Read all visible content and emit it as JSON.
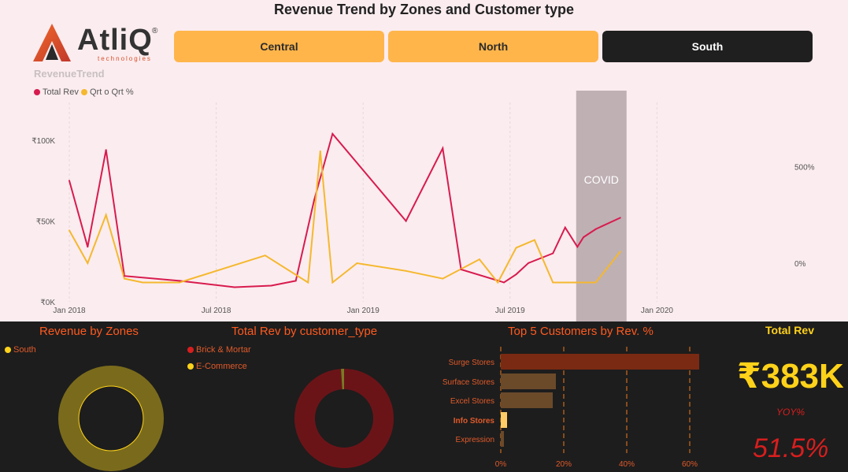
{
  "title": "Revenue Trend by Zones and Customer type",
  "logo": {
    "brand": "AtliQ",
    "registered": "®",
    "tagline": "technologies"
  },
  "zones": [
    {
      "label": "Central",
      "selected": false
    },
    {
      "label": "North",
      "selected": false
    },
    {
      "label": "South",
      "selected": true
    }
  ],
  "section_label": "RevenueTrend",
  "colors": {
    "total_rev": "#d81b4e",
    "qoq": "#f5b82e",
    "covid_band": "#bfb0b4",
    "donut_zone": "#7a6b1c",
    "brick": "#6b1418",
    "ecommerce": "#7a7a24",
    "bar_top": "#7a2a12",
    "bar_mid": "#6b4a2a",
    "bar_info": "#ffcc66",
    "kpi": "#ffd21a",
    "red": "#d81e1e"
  },
  "chart_data": [
    {
      "type": "line",
      "title": "RevenueTrend",
      "categories": [
        "2018-01",
        "2018-02",
        "2018-03",
        "2018-04",
        "2018-05",
        "2018-07",
        "2018-09",
        "2018-11",
        "2018-12",
        "2019-01",
        "2019-03",
        "2019-05",
        "2019-06",
        "2019-08",
        "2019-09",
        "2019-10",
        "2019-11",
        "2019-12",
        "2020-01",
        "2020-02",
        "2020-03",
        "2020-06"
      ],
      "x_ticks": [
        "Jan 2018",
        "Jul 2018",
        "Jan 2019",
        "Jul 2019",
        "Jan 2020"
      ],
      "y_ticks": [
        "₹0K",
        "₹50K",
        "₹100K"
      ],
      "y2_ticks": [
        "0%",
        "500%"
      ],
      "ylim": [
        0,
        105000
      ],
      "y2lim": [
        -200,
        700
      ],
      "legend": [
        "Total Rev",
        "Qrt o Qrt %"
      ],
      "series": [
        {
          "name": "Total Rev",
          "x": [
            0,
            0.75,
            1.5,
            2.25,
            4.5,
            6.75,
            8.25,
            9.25,
            10,
            10.75,
            13.75,
            15.25,
            16,
            17.75,
            18.25,
            18.75,
            19.75,
            20.25,
            20.75,
            21,
            21.5,
            22.5
          ],
          "values": [
            75000,
            34000,
            94000,
            16000,
            13000,
            9000,
            10000,
            13000,
            63000,
            104000,
            50000,
            95000,
            20000,
            12000,
            17000,
            24000,
            30000,
            46000,
            34000,
            40000,
            45000,
            52000
          ]
        },
        {
          "name": "Qrt o Qrt %",
          "x": [
            0,
            0.75,
            1.5,
            2.25,
            3,
            4.5,
            8,
            9.75,
            10.25,
            10.75,
            11.75,
            13.75,
            15.25,
            16.75,
            17.5,
            18.25,
            19,
            19.75,
            20.25,
            21,
            21.5,
            22.5
          ],
          "values": [
            170,
            0,
            250,
            -80,
            -100,
            -100,
            40,
            -100,
            580,
            -100,
            0,
            -40,
            -80,
            20,
            -100,
            80,
            120,
            -100,
            -100,
            -100,
            -100,
            60
          ]
        }
      ],
      "annotation": {
        "label": "COVID",
        "from": 20.7,
        "to": 22.5
      }
    },
    {
      "type": "pie",
      "title": "Revenue by Zones",
      "legend": [
        "South"
      ],
      "values": [
        100
      ]
    },
    {
      "type": "pie",
      "title": "Total Rev by customer_type",
      "legend": [
        "Brick & Mortar",
        "E-Commerce"
      ],
      "values": [
        99,
        1
      ]
    },
    {
      "type": "bar",
      "title": "Top 5 Customers by Rev. %",
      "categories": [
        "Surge Stores",
        "Surface Stores",
        "Excel Stores",
        "Info Stores",
        "Expression"
      ],
      "values": [
        63,
        17.5,
        16.5,
        2,
        1
      ],
      "highlight": "Info Stores",
      "x_ticks": [
        "0%",
        "20%",
        "40%",
        "60%"
      ],
      "xlim": [
        0,
        60
      ]
    }
  ],
  "kpi": {
    "title": "Total Rev",
    "value": "₹383K",
    "sub_label": "YOY%",
    "yoy": "51.5%"
  }
}
